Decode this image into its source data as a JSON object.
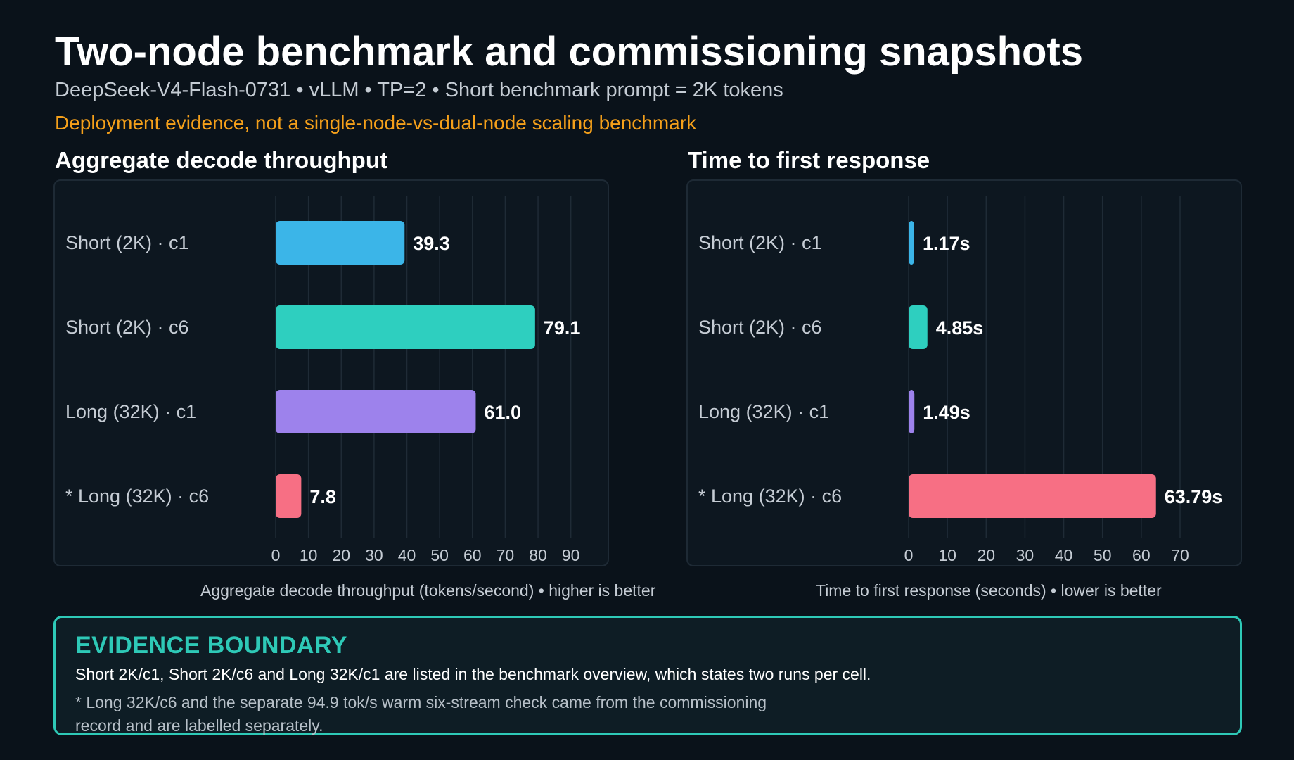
{
  "header": {
    "title": "Two-node benchmark and commissioning snapshots",
    "subtitle": "DeepSeek-V4-Flash-0731 • vLLM • TP=2 • Short benchmark prompt = 2K tokens",
    "warning": "Deployment evidence, not a single-node-vs-dual-node scaling benchmark"
  },
  "colors": {
    "background": "#0a121a",
    "panel": "#0d1720",
    "series": [
      "#3bb5e8",
      "#2ecfbf",
      "#9d82ec",
      "#f76f84"
    ],
    "warning": "#f5a01a",
    "evidence_accent": "#2ec9b7"
  },
  "chart_data": [
    {
      "type": "bar",
      "orientation": "horizontal",
      "title": "Aggregate decode throughput",
      "xlabel": "Aggregate decode throughput (tokens/second) • higher is better",
      "categories": [
        "Short (2K) · c1",
        "Short (2K) · c6",
        "Long (32K) · c1",
        "* Long (32K) · c6"
      ],
      "values": [
        39.3,
        79.1,
        61.0,
        7.8
      ],
      "value_labels": [
        "39.3",
        "79.1",
        "61.0",
        "7.8"
      ],
      "xticks": [
        0,
        10,
        20,
        30,
        40,
        50,
        60,
        70,
        80,
        90
      ],
      "xlim": [
        0,
        95
      ],
      "grid": true,
      "legend": "none"
    },
    {
      "type": "bar",
      "orientation": "horizontal",
      "title": "Time to first response",
      "xlabel": "Time to first response (seconds) • lower is better",
      "categories": [
        "Short (2K) · c1",
        "Short (2K) · c6",
        "Long (32K) · c1",
        "* Long (32K) · c6"
      ],
      "values": [
        1.17,
        4.85,
        1.49,
        63.79
      ],
      "value_labels": [
        "1.17s",
        "4.85s",
        "1.49s",
        "63.79s"
      ],
      "xticks": [
        0,
        10,
        20,
        30,
        40,
        50,
        60,
        70
      ],
      "xlim": [
        0,
        70
      ],
      "grid": true,
      "legend": "none"
    }
  ],
  "evidence": {
    "heading": "EVIDENCE BOUNDARY",
    "line1": "Short 2K/c1, Short 2K/c6 and Long 32K/c1 are listed in the benchmark overview, which states two runs per cell.",
    "note": "* Long 32K/c6 and the separate 94.9 tok/s warm six-stream check came from the commissioning record and are labelled separately."
  }
}
